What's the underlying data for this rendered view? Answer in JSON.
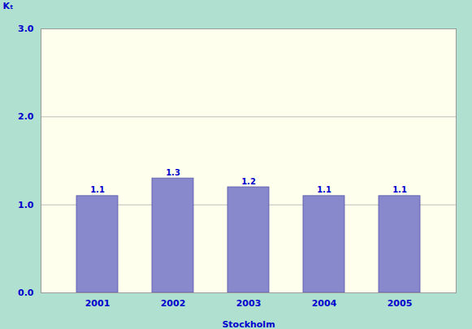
{
  "chart_data": {
    "type": "bar",
    "categories": [
      "2001",
      "2002",
      "2003",
      "2004",
      "2005"
    ],
    "values": [
      1.1,
      1.3,
      1.2,
      1.1,
      1.1
    ],
    "color": "#8888cc",
    "xlabel": "Stockholm",
    "ylabel": "Kₜ",
    "ylim": [
      0.0,
      3.0
    ],
    "yticks": [
      {
        "value": 0.0,
        "label": "0.0"
      },
      {
        "value": 1.0,
        "label": "1.0"
      },
      {
        "value": 2.0,
        "label": "2.0"
      },
      {
        "value": 3.0,
        "label": "3.0"
      }
    ],
    "grid": true,
    "data_labels": true
  }
}
